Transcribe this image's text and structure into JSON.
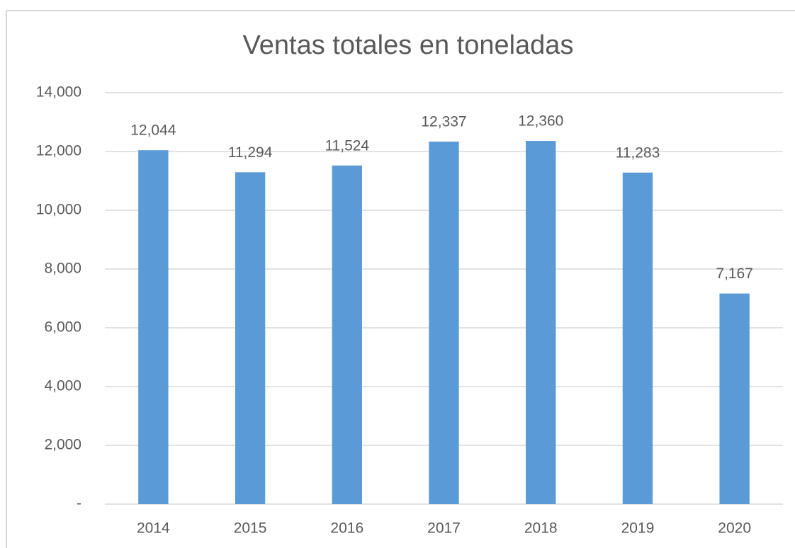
{
  "chart_data": {
    "type": "bar",
    "title": "Ventas totales en toneladas",
    "categories": [
      "2014",
      "2015",
      "2016",
      "2017",
      "2018",
      "2019",
      "2020"
    ],
    "values": [
      12044,
      11294,
      11524,
      12337,
      12360,
      11283,
      7167
    ],
    "value_labels": [
      "12,044",
      "11,294",
      "11,524",
      "12,337",
      "12,360",
      "11,283",
      "7,167"
    ],
    "color": "#5b9bd5",
    "ylim": [
      0,
      14000
    ],
    "yticks": [
      {
        "value": 0,
        "label": "-"
      },
      {
        "value": 2000,
        "label": "2,000"
      },
      {
        "value": 4000,
        "label": "4,000"
      },
      {
        "value": 6000,
        "label": "6,000"
      },
      {
        "value": 8000,
        "label": "8,000"
      },
      {
        "value": 10000,
        "label": "10,000"
      },
      {
        "value": 12000,
        "label": "12,000"
      },
      {
        "value": 14000,
        "label": "14,000"
      }
    ],
    "grid": true
  }
}
